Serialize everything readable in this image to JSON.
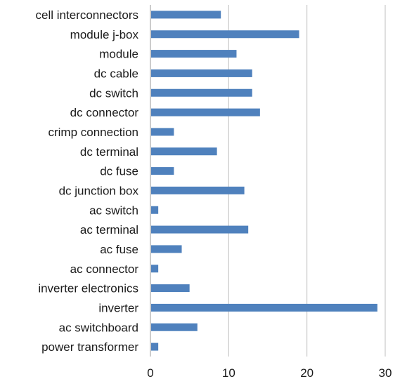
{
  "chart_data": {
    "type": "bar",
    "orientation": "horizontal",
    "categories": [
      "cell interconnectors",
      "module j-box",
      "module",
      "dc cable",
      "dc switch",
      "dc connector",
      "crimp connection",
      "dc terminal",
      "dc fuse",
      "dc junction box",
      "ac switch",
      "ac terminal",
      "ac fuse",
      "ac connector",
      "inverter electronics",
      "inverter",
      "ac switchboard",
      "power transformer"
    ],
    "values": [
      9,
      19,
      11,
      13,
      13,
      14,
      3,
      8.5,
      3,
      12,
      1,
      12.5,
      4,
      1,
      5,
      29,
      6,
      1
    ],
    "xlim": [
      0,
      30
    ],
    "xticks": [
      "0",
      "10",
      "20",
      "30"
    ],
    "grid": true,
    "bar_color": "#4f81bd",
    "grid_color": "#bfbfbf",
    "title": "",
    "xlabel": "",
    "ylabel": ""
  }
}
